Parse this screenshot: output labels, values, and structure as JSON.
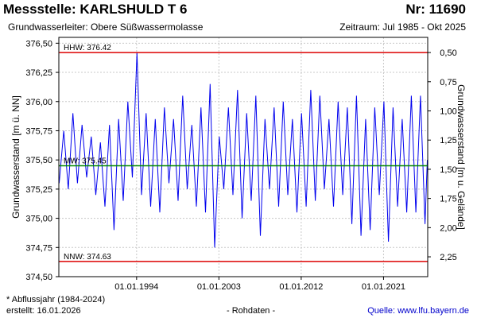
{
  "header": {
    "title": "Messstelle: KARLSHULD T 6",
    "station_number": "Nr: 11690",
    "aquifer": "Grundwasserleiter:   Obere Süßwassermolasse",
    "period": "Zeitraum: Jul 1985 - Okt 2025"
  },
  "footer": {
    "footnote": "* Abflussjahr (1984-2024)",
    "created": "erstellt:  16.01.2026",
    "raw": "- Rohdaten -",
    "source": "Quelle: www.lfu.bayern.de"
  },
  "colors": {
    "series": "#0000ee",
    "hhw_nnw": "#dd0000",
    "mw": "#008800",
    "grid": "#c8c8c8",
    "source_link": "#0000cc"
  },
  "chart_data": {
    "type": "line",
    "ylabel_left": "Grundwasserstand [m ü. NN]",
    "ylabel_right": "Grundwasserstand [m u. Gelände]",
    "ylim": [
      374.5,
      376.55
    ],
    "y_ticks": [
      "374,50",
      "374,75",
      "375,00",
      "375,25",
      "375,50",
      "375,75",
      "376,00",
      "376,25",
      "376,50"
    ],
    "y_ticks_values": [
      374.5,
      374.75,
      375.0,
      375.25,
      375.5,
      375.75,
      376.0,
      376.25,
      376.5
    ],
    "y2_ticks": [
      "0,50",
      "0,75",
      "1,00",
      "1,25",
      "1,50",
      "1,75",
      "2,00",
      "2,25"
    ],
    "y2_ticks_values": [
      0.5,
      0.75,
      1.0,
      1.25,
      1.5,
      1.75,
      2.0,
      2.25
    ],
    "y2_reference_level": 376.92,
    "xlim": [
      "1985-07-01",
      "2025-10-31"
    ],
    "x_ticks": [
      "01.01.1994",
      "01.01.2003",
      "01.01.2012",
      "01.01.2021"
    ],
    "x_ticks_dates": [
      "1994-01-01",
      "2003-01-01",
      "2012-01-01",
      "2021-01-01"
    ],
    "grid": true,
    "reference_lines": [
      {
        "label": "HHW: 376.42",
        "value": 376.42
      },
      {
        "label": "MW: 375.45",
        "value": 375.45
      },
      {
        "label": "NNW: 374.63",
        "value": 374.63
      }
    ],
    "series": [
      {
        "values_dates": [
          "1985-07",
          "1986-01",
          "1986-07",
          "1987-01",
          "1987-07",
          "1988-01",
          "1988-07",
          "1989-01",
          "1989-07",
          "1990-01",
          "1990-07",
          "1991-01",
          "1991-07",
          "1992-01",
          "1992-07",
          "1993-01",
          "1993-07",
          "1994-01",
          "1994-07",
          "1995-01",
          "1995-07",
          "1996-01",
          "1996-07",
          "1997-01",
          "1997-07",
          "1998-01",
          "1998-07",
          "1999-01",
          "1999-07",
          "2000-01",
          "2000-07",
          "2001-01",
          "2001-07",
          "2002-01",
          "2002-07",
          "2003-01",
          "2003-07",
          "2004-01",
          "2004-07",
          "2005-01",
          "2005-07",
          "2006-01",
          "2006-07",
          "2007-01",
          "2007-07",
          "2008-01",
          "2008-07",
          "2009-01",
          "2009-07",
          "2010-01",
          "2010-07",
          "2011-01",
          "2011-07",
          "2012-01",
          "2012-07",
          "2013-01",
          "2013-07",
          "2014-01",
          "2014-07",
          "2015-01",
          "2015-07",
          "2016-01",
          "2016-07",
          "2017-01",
          "2017-07",
          "2018-01",
          "2018-07",
          "2019-01",
          "2019-07",
          "2020-01",
          "2020-07",
          "2021-01",
          "2021-07",
          "2022-01",
          "2022-07",
          "2023-01",
          "2023-07",
          "2024-01",
          "2024-07",
          "2025-01",
          "2025-07",
          "2025-10"
        ],
        "values": [
          375.3,
          375.75,
          375.25,
          375.9,
          375.3,
          375.8,
          375.35,
          375.7,
          375.2,
          375.65,
          375.1,
          375.8,
          374.9,
          375.85,
          375.15,
          376.0,
          375.35,
          376.42,
          375.2,
          375.9,
          375.1,
          375.85,
          375.05,
          375.95,
          375.3,
          375.85,
          375.15,
          376.05,
          375.25,
          375.8,
          375.1,
          375.95,
          375.05,
          376.15,
          374.75,
          375.7,
          375.25,
          375.95,
          375.2,
          376.1,
          375.0,
          375.9,
          375.15,
          376.05,
          374.85,
          375.85,
          375.25,
          375.95,
          375.1,
          376.0,
          375.2,
          375.85,
          375.05,
          375.9,
          375.1,
          376.1,
          375.15,
          376.05,
          375.25,
          375.85,
          375.1,
          376.0,
          375.2,
          375.95,
          374.95,
          376.05,
          374.85,
          375.85,
          374.9,
          375.95,
          375.2,
          376.0,
          374.8,
          375.95,
          375.1,
          375.85,
          375.05,
          376.05,
          375.05,
          376.05,
          374.95,
          375.5
        ]
      }
    ]
  }
}
